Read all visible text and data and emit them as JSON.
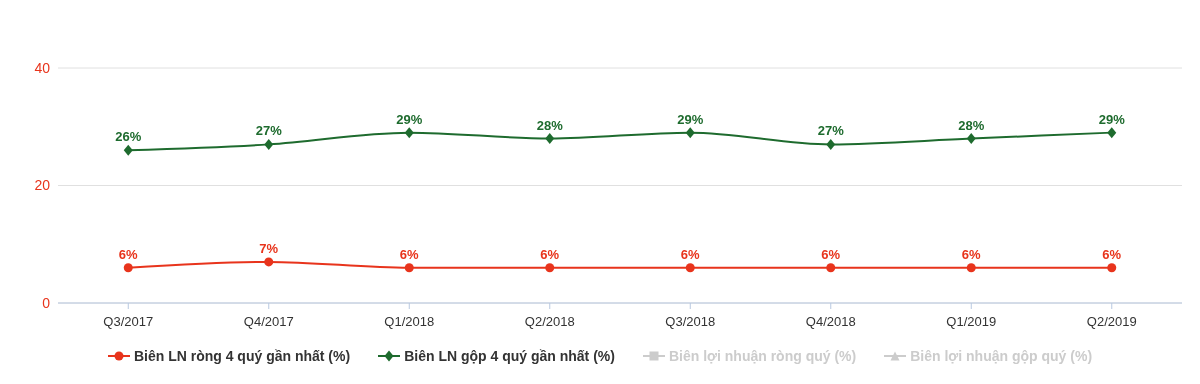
{
  "chart_data": {
    "type": "line",
    "categories": [
      "Q3/2017",
      "Q4/2017",
      "Q1/2018",
      "Q2/2018",
      "Q3/2018",
      "Q4/2018",
      "Q1/2019",
      "Q2/2019"
    ],
    "series": [
      {
        "name": "Biên LN ròng 4 quý gần nhất (%)",
        "color": "#e8341c",
        "marker": "circle",
        "values": [
          6,
          7,
          6,
          6,
          6,
          6,
          6,
          6
        ],
        "value_labels": [
          "6%",
          "7%",
          "6%",
          "6%",
          "6%",
          "6%",
          "6%",
          "6%"
        ]
      },
      {
        "name": "Biên LN gộp 4 quý gần nhất (%)",
        "color": "#1e6b2e",
        "marker": "diamond",
        "values": [
          26,
          27,
          29,
          28,
          29,
          27,
          28,
          29
        ],
        "value_labels": [
          "26%",
          "27%",
          "29%",
          "28%",
          "29%",
          "27%",
          "28%",
          "29%"
        ]
      },
      {
        "name": "Biên lợi nhuận ròng quý (%)",
        "color": "#cccccc",
        "marker": "square",
        "values": [
          null,
          null,
          null,
          null,
          null,
          null,
          null,
          null
        ]
      },
      {
        "name": "Biên lợi nhuận gộp quý (%)",
        "color": "#cccccc",
        "marker": "triangle",
        "values": [
          null,
          null,
          null,
          null,
          null,
          null,
          null,
          null
        ]
      }
    ],
    "ylim": [
      0,
      40
    ],
    "yticks": [
      0,
      20,
      40
    ],
    "grid": "y",
    "legend": "bottom",
    "line_style": "solid"
  }
}
